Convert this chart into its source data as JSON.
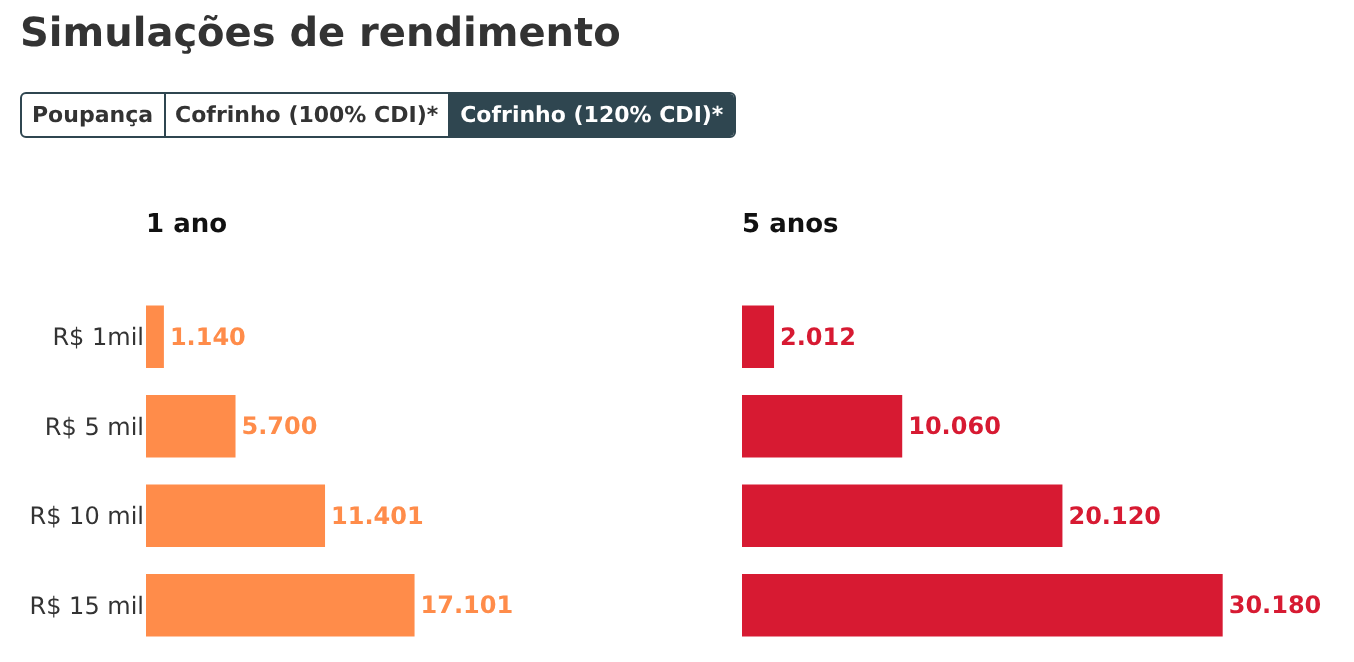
{
  "chart_data": [
    {
      "type": "bar",
      "orientation": "horizontal",
      "title": "Simulações de rendimento",
      "subtitle": "1 ano",
      "annotations": [
        "Poupança",
        "Cofrinho (100% CDI)*",
        "Cofrinho (120% CDI)*"
      ],
      "categories": [
        "R$ 1mil",
        "R$ 5 mil",
        "R$ 10 mil",
        "R$ 15 mil"
      ],
      "values": [
        1140,
        5700,
        11401,
        17101
      ],
      "value_labels": [
        "1.140",
        "5.700",
        "11.401",
        "17.101"
      ],
      "color": "#ff8c4a",
      "grid": false,
      "legend": false,
      "tick_labels": "y"
    },
    {
      "type": "bar",
      "orientation": "horizontal",
      "title": "5 anos",
      "categories": [
        null,
        null,
        null,
        null
      ],
      "values": [
        2012,
        10060,
        20120,
        30180
      ],
      "value_labels": [
        "2.012",
        "10.060",
        "20.120",
        "30.180"
      ],
      "color": "#d71a32",
      "grid": false,
      "legend": false,
      "tick_labels": false
    }
  ]
}
